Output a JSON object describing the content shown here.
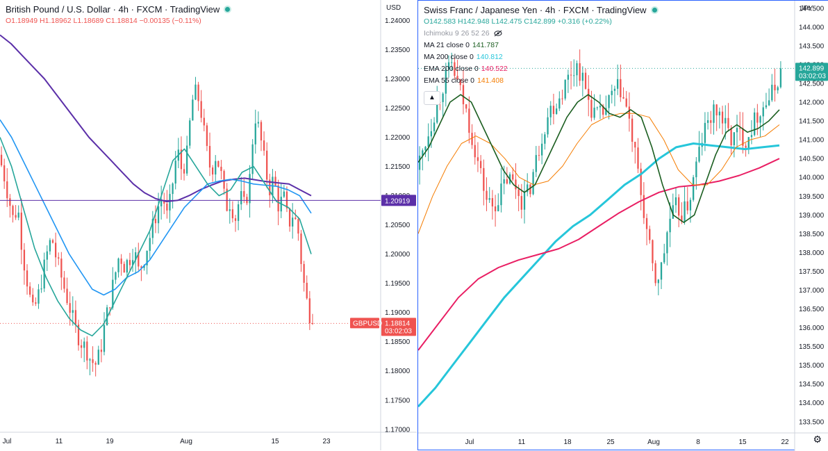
{
  "left": {
    "title": "British Pound / U.S. Dollar · 4h · FXCM · TradingView",
    "ohlc": "O1.18949 H1.18962 L1.18689 C1.18814 −0.00135 (−0.11%)",
    "currency": "USD",
    "symbol_badge": "GBPUSD",
    "price_badge": "1.18814",
    "countdown": "03:02:03",
    "line_badge": "1.20919",
    "price_ticks": [
      "1.24000",
      "1.23500",
      "1.23000",
      "1.22500",
      "1.22000",
      "1.21500",
      "1.21000",
      "1.20500",
      "1.20000",
      "1.19500",
      "1.19000",
      "1.18500",
      "1.18000",
      "1.17500",
      "1.17000"
    ],
    "time_ticks": [
      "Jul",
      "11",
      "19",
      "Aug",
      "15",
      "23"
    ],
    "colors": {
      "up": "#26a69a",
      "down": "#ef5350",
      "ma_slow": "#5b2fa8",
      "ma_mid": "#2196f3",
      "ma_fast": "#26a69a",
      "hline": "#5b2fa8"
    }
  },
  "right": {
    "title": "Swiss Franc / Japanese Yen · 4h · FXCM · TradingView",
    "ohlc": "O142.583 H142.948 L142.475 C142.899 +0.316 (+0.22%)",
    "currency": "JPY",
    "price_badge": "142.899",
    "countdown": "03:02:03",
    "indicators": [
      {
        "label": "Ichimoku 9 26 52 26",
        "value": "",
        "color": "#9598a1",
        "icon": "eye-off-icon"
      },
      {
        "label": "MA 21 close 0",
        "value": "141.787",
        "color": "#1b5e20"
      },
      {
        "label": "MA 200 close 0",
        "value": "140.812",
        "color": "#26c6da"
      },
      {
        "label": "EMA 200 close 0",
        "value": "140.522",
        "color": "#e91e63"
      },
      {
        "label": "EMA 55 close 0",
        "value": "141.408",
        "color": "#f57c00"
      }
    ],
    "price_ticks": [
      "144.500",
      "144.000",
      "143.500",
      "143.000",
      "142.500",
      "142.000",
      "141.500",
      "141.000",
      "140.500",
      "140.000",
      "139.500",
      "139.000",
      "138.500",
      "138.000",
      "137.500",
      "137.000",
      "136.500",
      "136.000",
      "135.500",
      "135.000",
      "134.500",
      "134.000",
      "133.500"
    ],
    "time_ticks": [
      "Jul",
      "11",
      "18",
      "25",
      "Aug",
      "8",
      "15",
      "22"
    ],
    "colors": {
      "up": "#26a69a",
      "down": "#ef5350",
      "ma21": "#1b5e20",
      "ma200": "#26c6da",
      "ema200": "#e91e63",
      "ema55": "#f57c00"
    }
  },
  "chart_data": [
    {
      "type": "candlestick",
      "symbol": "GBPUSD",
      "interval": "4h",
      "ylim": [
        1.1695,
        1.2435
      ],
      "x_ticks": [
        "Jul",
        "11",
        "19",
        "Aug",
        "15",
        "23"
      ],
      "price_path": [
        1.217,
        1.214,
        1.21,
        1.206,
        1.208,
        1.2,
        1.195,
        1.19,
        1.192,
        1.196,
        1.2,
        1.203,
        1.199,
        1.196,
        1.193,
        1.19,
        1.187,
        1.185,
        1.184,
        1.182,
        1.181,
        1.183,
        1.188,
        1.192,
        1.196,
        1.2,
        1.198,
        1.199,
        1.201,
        1.197,
        1.199,
        1.202,
        1.205,
        1.208,
        1.21,
        1.206,
        1.212,
        1.218,
        1.214,
        1.217,
        1.226,
        1.228,
        1.224,
        1.218,
        1.214,
        1.217,
        1.214,
        1.208,
        1.209,
        1.206,
        1.21,
        1.208,
        1.213,
        1.224,
        1.221,
        1.216,
        1.211,
        1.213,
        1.208,
        1.21,
        1.205,
        1.207,
        1.204,
        1.196,
        1.191,
        1.188
      ],
      "ma_slow": [
        1.2375,
        1.236,
        1.234,
        1.232,
        1.23,
        1.2275,
        1.225,
        1.2225,
        1.22,
        1.218,
        1.216,
        1.214,
        1.212,
        1.2105,
        1.2095,
        1.209,
        1.2092,
        1.21,
        1.211,
        1.2118,
        1.2125,
        1.2128,
        1.213,
        1.2127,
        1.2124,
        1.2122,
        1.212,
        1.211,
        1.21
      ],
      "ma_mid": [
        1.223,
        1.22,
        1.216,
        1.212,
        1.208,
        1.204,
        1.2,
        1.197,
        1.194,
        1.193,
        1.194,
        1.196,
        1.197,
        1.199,
        1.202,
        1.205,
        1.208,
        1.21,
        1.212,
        1.2125,
        1.2128,
        1.2125,
        1.212,
        1.2118,
        1.2116,
        1.211,
        1.21,
        1.207
      ],
      "ma_fast": [
        1.22,
        1.215,
        1.208,
        1.201,
        1.196,
        1.192,
        1.189,
        1.187,
        1.186,
        1.188,
        1.192,
        1.196,
        1.2,
        1.204,
        1.21,
        1.216,
        1.218,
        1.215,
        1.212,
        1.21,
        1.211,
        1.214,
        1.215,
        1.212,
        1.209,
        1.208,
        1.206,
        1.2
      ],
      "hline": 1.20919,
      "last": 1.18814
    },
    {
      "type": "candlestick",
      "symbol": "CHFJPY",
      "interval": "4h",
      "ylim": [
        133.2,
        144.7
      ],
      "x_ticks": [
        "Jul",
        "11",
        "18",
        "25",
        "Aug",
        "8",
        "15",
        "22"
      ],
      "price_path": [
        140.2,
        140.8,
        141.4,
        142.0,
        142.6,
        143.0,
        142.4,
        141.8,
        141.0,
        140.2,
        139.4,
        139.2,
        139.6,
        140.0,
        139.8,
        139.4,
        139.6,
        140.4,
        141.2,
        141.8,
        142.0,
        142.4,
        142.8,
        143.0,
        142.4,
        141.8,
        141.6,
        141.8,
        142.2,
        142.4,
        141.8,
        140.8,
        139.6,
        138.4,
        137.2,
        137.6,
        138.8,
        139.2,
        139.0,
        139.4,
        140.4,
        141.2,
        141.6,
        141.8,
        141.4,
        141.0,
        141.2,
        141.0,
        141.4,
        141.8,
        142.0,
        142.3,
        142.8
      ],
      "ma21": [
        140.4,
        140.8,
        141.4,
        142.0,
        142.2,
        142.0,
        141.4,
        140.8,
        140.2,
        139.8,
        139.6,
        139.8,
        140.4,
        141.0,
        141.6,
        142.0,
        142.2,
        142.0,
        141.7,
        141.6,
        141.8,
        141.6,
        140.8,
        139.8,
        139.0,
        138.8,
        139.0,
        139.8,
        140.6,
        141.2,
        141.4,
        141.2,
        141.3,
        141.5,
        141.8
      ],
      "ema55": [
        138.5,
        139.5,
        140.3,
        140.9,
        141.1,
        140.9,
        140.5,
        140.0,
        139.8,
        139.9,
        140.3,
        140.9,
        141.4,
        141.6,
        141.7,
        141.7,
        141.6,
        141.0,
        140.2,
        139.8,
        139.8,
        140.2,
        140.8,
        141.0,
        141.1,
        141.4
      ],
      "ma200": [
        133.9,
        134.4,
        135.0,
        135.6,
        136.2,
        136.8,
        137.3,
        137.8,
        138.3,
        138.7,
        139.0,
        139.4,
        139.8,
        140.1,
        140.5,
        140.8,
        140.9,
        140.85,
        140.8,
        140.75,
        140.8,
        140.85
      ],
      "ema200": [
        135.4,
        136.1,
        136.8,
        137.3,
        137.6,
        137.8,
        137.95,
        138.1,
        138.35,
        138.7,
        139.05,
        139.35,
        139.6,
        139.75,
        139.8,
        139.9,
        140.05,
        140.25,
        140.5
      ],
      "last": 142.899
    }
  ]
}
